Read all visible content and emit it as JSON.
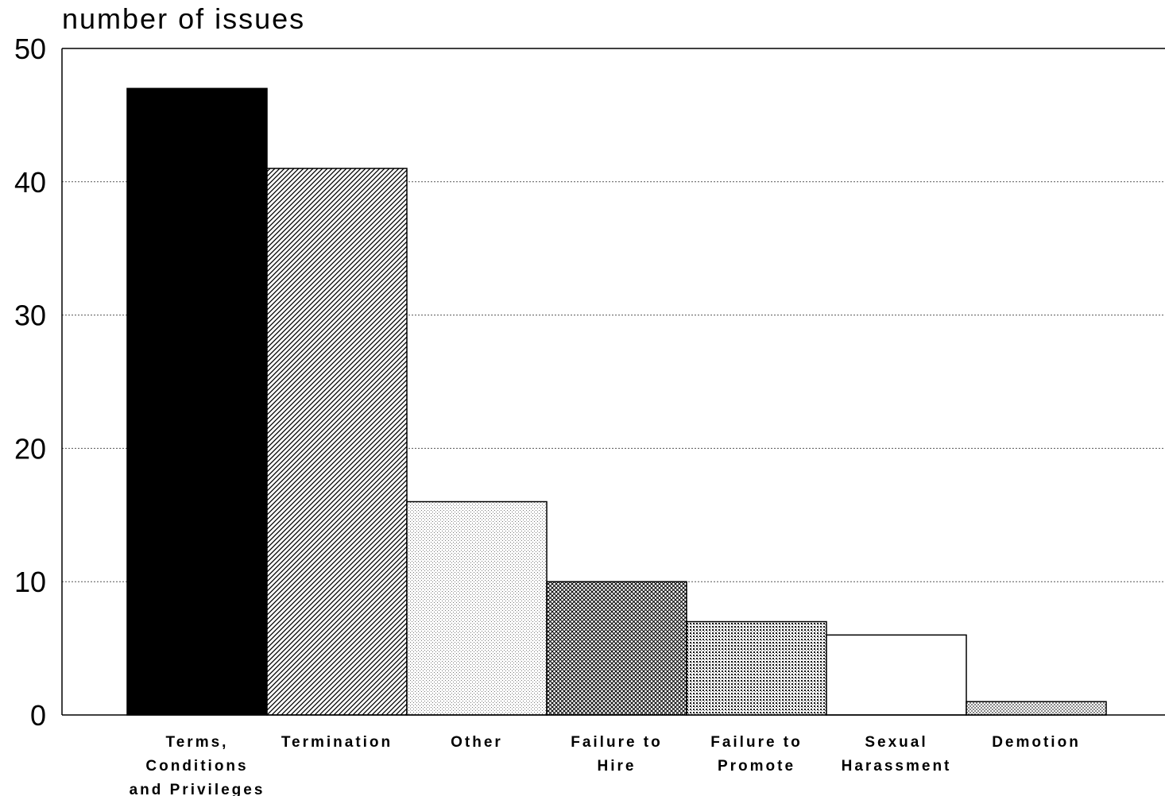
{
  "chart_data": {
    "type": "bar",
    "title": "",
    "ylabel": "number of issues",
    "xlabel": "",
    "ylim": [
      0,
      50
    ],
    "yticks": [
      0,
      10,
      20,
      30,
      40,
      50
    ],
    "grid": "horizontal dotted",
    "categories": [
      "Terms, Conditions and Privileges",
      "Termination",
      "Other",
      "Failure to Hire",
      "Failure to Promote",
      "Sexual Harassment",
      "Demotion"
    ],
    "category_label_lines": [
      [
        "Terms,",
        "Conditions",
        "and Privileges"
      ],
      [
        "Termination"
      ],
      [
        "Other"
      ],
      [
        "Failure to",
        "Hire"
      ],
      [
        "Failure to",
        "Promote"
      ],
      [
        "Sexual",
        "Harassment"
      ],
      [
        "Demotion"
      ]
    ],
    "values": [
      47,
      41,
      16,
      10,
      7,
      6,
      1
    ],
    "bar_fills": [
      "solid-black",
      "diagonal-hatch",
      "light-stipple",
      "cross-hatch",
      "dense-dots",
      "white",
      "light-checker"
    ]
  }
}
